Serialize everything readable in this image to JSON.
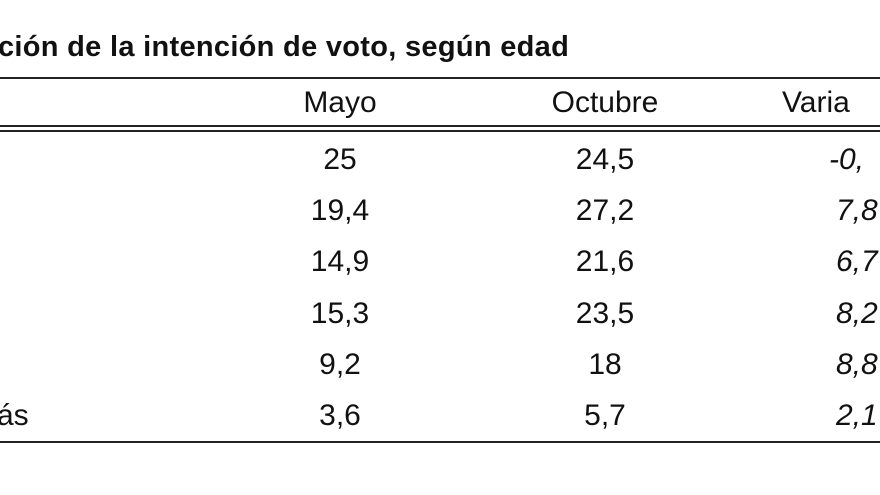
{
  "header": {
    "title": "ción de la intención de voto, según edad"
  },
  "table": {
    "columns": [
      "Mayo",
      "Octubre",
      "Varia"
    ],
    "rows": [
      {
        "cells": [
          "25",
          "24,5",
          "-0,"
        ]
      },
      {
        "cells": [
          "19,4",
          "27,2",
          "7,8"
        ]
      },
      {
        "cells": [
          "14,9",
          "21,6",
          "6,7"
        ]
      },
      {
        "cells": [
          "15,3",
          "23,5",
          "8,2"
        ]
      },
      {
        "cells": [
          "9,2",
          "18",
          "8,8"
        ]
      },
      {
        "label": "ás",
        "cells": [
          "3,6",
          "5,7",
          "2,1"
        ]
      }
    ]
  }
}
